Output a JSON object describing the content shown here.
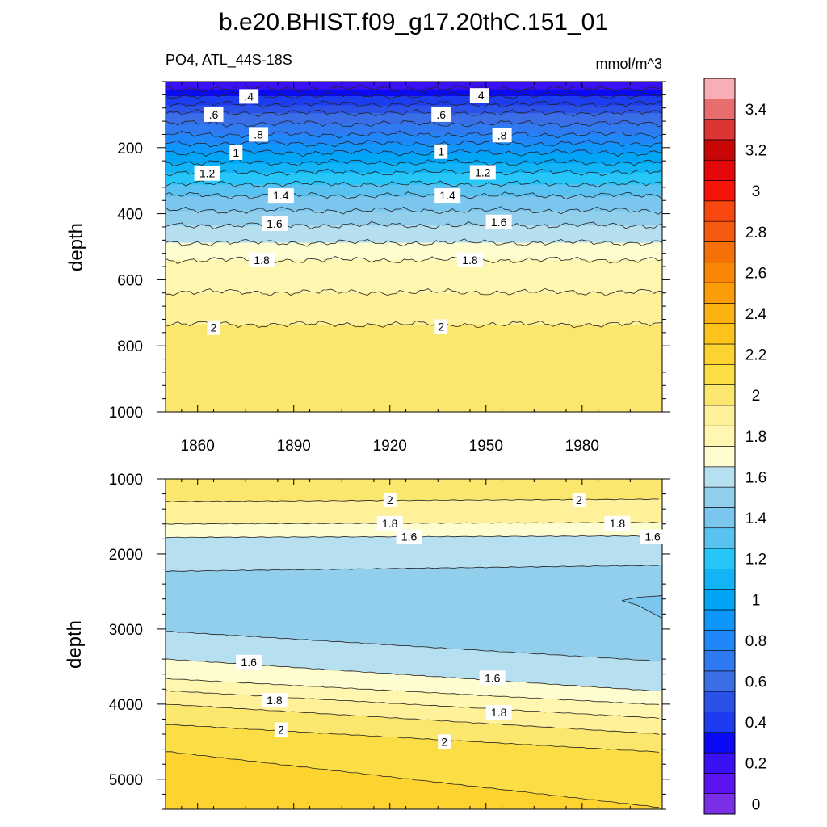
{
  "chart_data": {
    "type": "contour",
    "title": "b.e20.BHIST.f09_g17.20thC.151_01",
    "variable_label": "PO4, ATL_44S-18S",
    "units": "mmol/m^3",
    "x_axis": {
      "range": [
        1850,
        2005
      ],
      "tick_labels": [
        "1860",
        "1890",
        "1920",
        "1950",
        "1980"
      ],
      "tick_values": [
        1860,
        1890,
        1920,
        1950,
        1980
      ]
    },
    "panels": [
      {
        "name": "upper",
        "ylabel": "depth",
        "ylim": [
          0,
          1000
        ],
        "y_tick_labels": [
          "200",
          "400",
          "600",
          "800",
          "1000"
        ],
        "y_tick_values": [
          200,
          400,
          600,
          800,
          1000
        ],
        "contour_depth_profile": [
          {
            "depth": 0,
            "po4": 0.2
          },
          {
            "depth": 42,
            "po4": 0.4
          },
          {
            "depth": 95,
            "po4": 0.6
          },
          {
            "depth": 160,
            "po4": 0.8
          },
          {
            "depth": 215,
            "po4": 1.0
          },
          {
            "depth": 275,
            "po4": 1.2
          },
          {
            "depth": 345,
            "po4": 1.4
          },
          {
            "depth": 435,
            "po4": 1.6
          },
          {
            "depth": 540,
            "po4": 1.8
          },
          {
            "depth": 735,
            "po4": 2.0
          },
          {
            "depth": 1000,
            "po4": 2.1
          }
        ],
        "contour_labels": [
          {
            "text": ".4",
            "year": 1876,
            "depth": 45
          },
          {
            "text": ".4",
            "year": 1948,
            "depth": 42
          },
          {
            "text": ".6",
            "year": 1865,
            "depth": 100
          },
          {
            "text": ".6",
            "year": 1936,
            "depth": 100
          },
          {
            "text": ".8",
            "year": 1879,
            "depth": 160
          },
          {
            "text": ".8",
            "year": 1955,
            "depth": 162
          },
          {
            "text": "1",
            "year": 1872,
            "depth": 215
          },
          {
            "text": "1",
            "year": 1936,
            "depth": 212
          },
          {
            "text": "1.2",
            "year": 1863,
            "depth": 278
          },
          {
            "text": "1.2",
            "year": 1949,
            "depth": 275
          },
          {
            "text": "1.4",
            "year": 1886,
            "depth": 345
          },
          {
            "text": "1.4",
            "year": 1938,
            "depth": 345
          },
          {
            "text": "1.6",
            "year": 1884,
            "depth": 430
          },
          {
            "text": "1.6",
            "year": 1954,
            "depth": 425
          },
          {
            "text": "1.8",
            "year": 1880,
            "depth": 540
          },
          {
            "text": "1.8",
            "year": 1945,
            "depth": 540
          },
          {
            "text": "2",
            "year": 1865,
            "depth": 745
          },
          {
            "text": "2",
            "year": 1936,
            "depth": 742
          }
        ]
      },
      {
        "name": "lower",
        "ylabel": "depth",
        "ylim": [
          1000,
          5400
        ],
        "y_tick_labels": [
          "1000",
          "2000",
          "3000",
          "4000",
          "5000"
        ],
        "y_tick_values": [
          1000,
          2000,
          3000,
          4000,
          5000
        ],
        "contour_lines": [
          {
            "po4": 2.0,
            "depth_1850": 1300,
            "depth_2005": 1270
          },
          {
            "po4": 1.8,
            "depth_1850": 1600,
            "depth_2005": 1580
          },
          {
            "po4": 1.6,
            "depth_1850": 1780,
            "depth_2005": 1760
          },
          {
            "po4": 1.5,
            "depth_1850": 2230,
            "depth_2005": 2150
          },
          {
            "po4": 1.5,
            "depth_1850": 3030,
            "depth_2005": 3430
          },
          {
            "po4": 1.6,
            "depth_1850": 3400,
            "depth_2005": 3830
          },
          {
            "po4": 1.7,
            "depth_1850": 3660,
            "depth_2005": 4010
          },
          {
            "po4": 1.8,
            "depth_1850": 3820,
            "depth_2005": 4190
          },
          {
            "po4": 1.9,
            "depth_1850": 4000,
            "depth_2005": 4400
          },
          {
            "po4": 2.0,
            "depth_1850": 4270,
            "depth_2005": 4640
          },
          {
            "po4": 2.1,
            "depth_1850": 4630,
            "depth_2005": 5380
          }
        ],
        "contour_labels": [
          {
            "text": "2",
            "year": 1920,
            "depth": 1280
          },
          {
            "text": "2",
            "year": 1979,
            "depth": 1280
          },
          {
            "text": "1.8",
            "year": 1920,
            "depth": 1590
          },
          {
            "text": "1.8",
            "year": 1991,
            "depth": 1590
          },
          {
            "text": "1.6",
            "year": 1926,
            "depth": 1770
          },
          {
            "text": "1.6",
            "year": 2002,
            "depth": 1770
          },
          {
            "text": "1.6",
            "year": 1876,
            "depth": 3440
          },
          {
            "text": "1.6",
            "year": 1952,
            "depth": 3650
          },
          {
            "text": "1.8",
            "year": 1884,
            "depth": 3950
          },
          {
            "text": "1.8",
            "year": 1954,
            "depth": 4110
          },
          {
            "text": "2",
            "year": 1886,
            "depth": 4340
          },
          {
            "text": "2",
            "year": 1937,
            "depth": 4500
          }
        ]
      }
    ],
    "colorbar": {
      "levels": [
        0,
        0.1,
        0.2,
        0.3,
        0.4,
        0.5,
        0.6,
        0.7,
        0.8,
        0.9,
        1.0,
        1.1,
        1.2,
        1.3,
        1.4,
        1.5,
        1.6,
        1.7,
        1.8,
        1.9,
        2.0,
        2.1,
        2.2,
        2.3,
        2.4,
        2.5,
        2.6,
        2.7,
        2.8,
        2.9,
        3.0,
        3.1,
        3.2,
        3.3,
        3.4,
        3.5
      ],
      "tick_labels": [
        "0",
        "0.2",
        "0.4",
        "0.6",
        "0.8",
        "1",
        "1.2",
        "1.4",
        "1.6",
        "1.8",
        "2",
        "2.2",
        "2.4",
        "2.6",
        "2.8",
        "3",
        "3.2",
        "3.4"
      ],
      "tick_values": [
        0,
        0.2,
        0.4,
        0.6,
        0.8,
        1.0,
        1.2,
        1.4,
        1.6,
        1.8,
        2.0,
        2.2,
        2.4,
        2.6,
        2.8,
        3.0,
        3.2,
        3.4
      ],
      "colors": [
        "#7a2fe6",
        "#5a14f0",
        "#3a10f5",
        "#0a0af5",
        "#1d3cf0",
        "#2b52e8",
        "#3a6ee6",
        "#2f7af0",
        "#1f88f8",
        "#0f96fa",
        "#00a6f5",
        "#10b4f7",
        "#26c6f8",
        "#5ac2f0",
        "#7ac6ee",
        "#92cfec",
        "#b6dff0",
        "#fefdcf",
        "#fff7b0",
        "#fff09a",
        "#fbe76e",
        "#fbdd45",
        "#fdd330",
        "#fcc31a",
        "#fbb10e",
        "#fb9c08",
        "#f98706",
        "#f67008",
        "#f65a10",
        "#f84810",
        "#f51508",
        "#e40808",
        "#c80606",
        "#dd3434",
        "#e96d6d",
        "#f8aeb4"
      ]
    }
  }
}
